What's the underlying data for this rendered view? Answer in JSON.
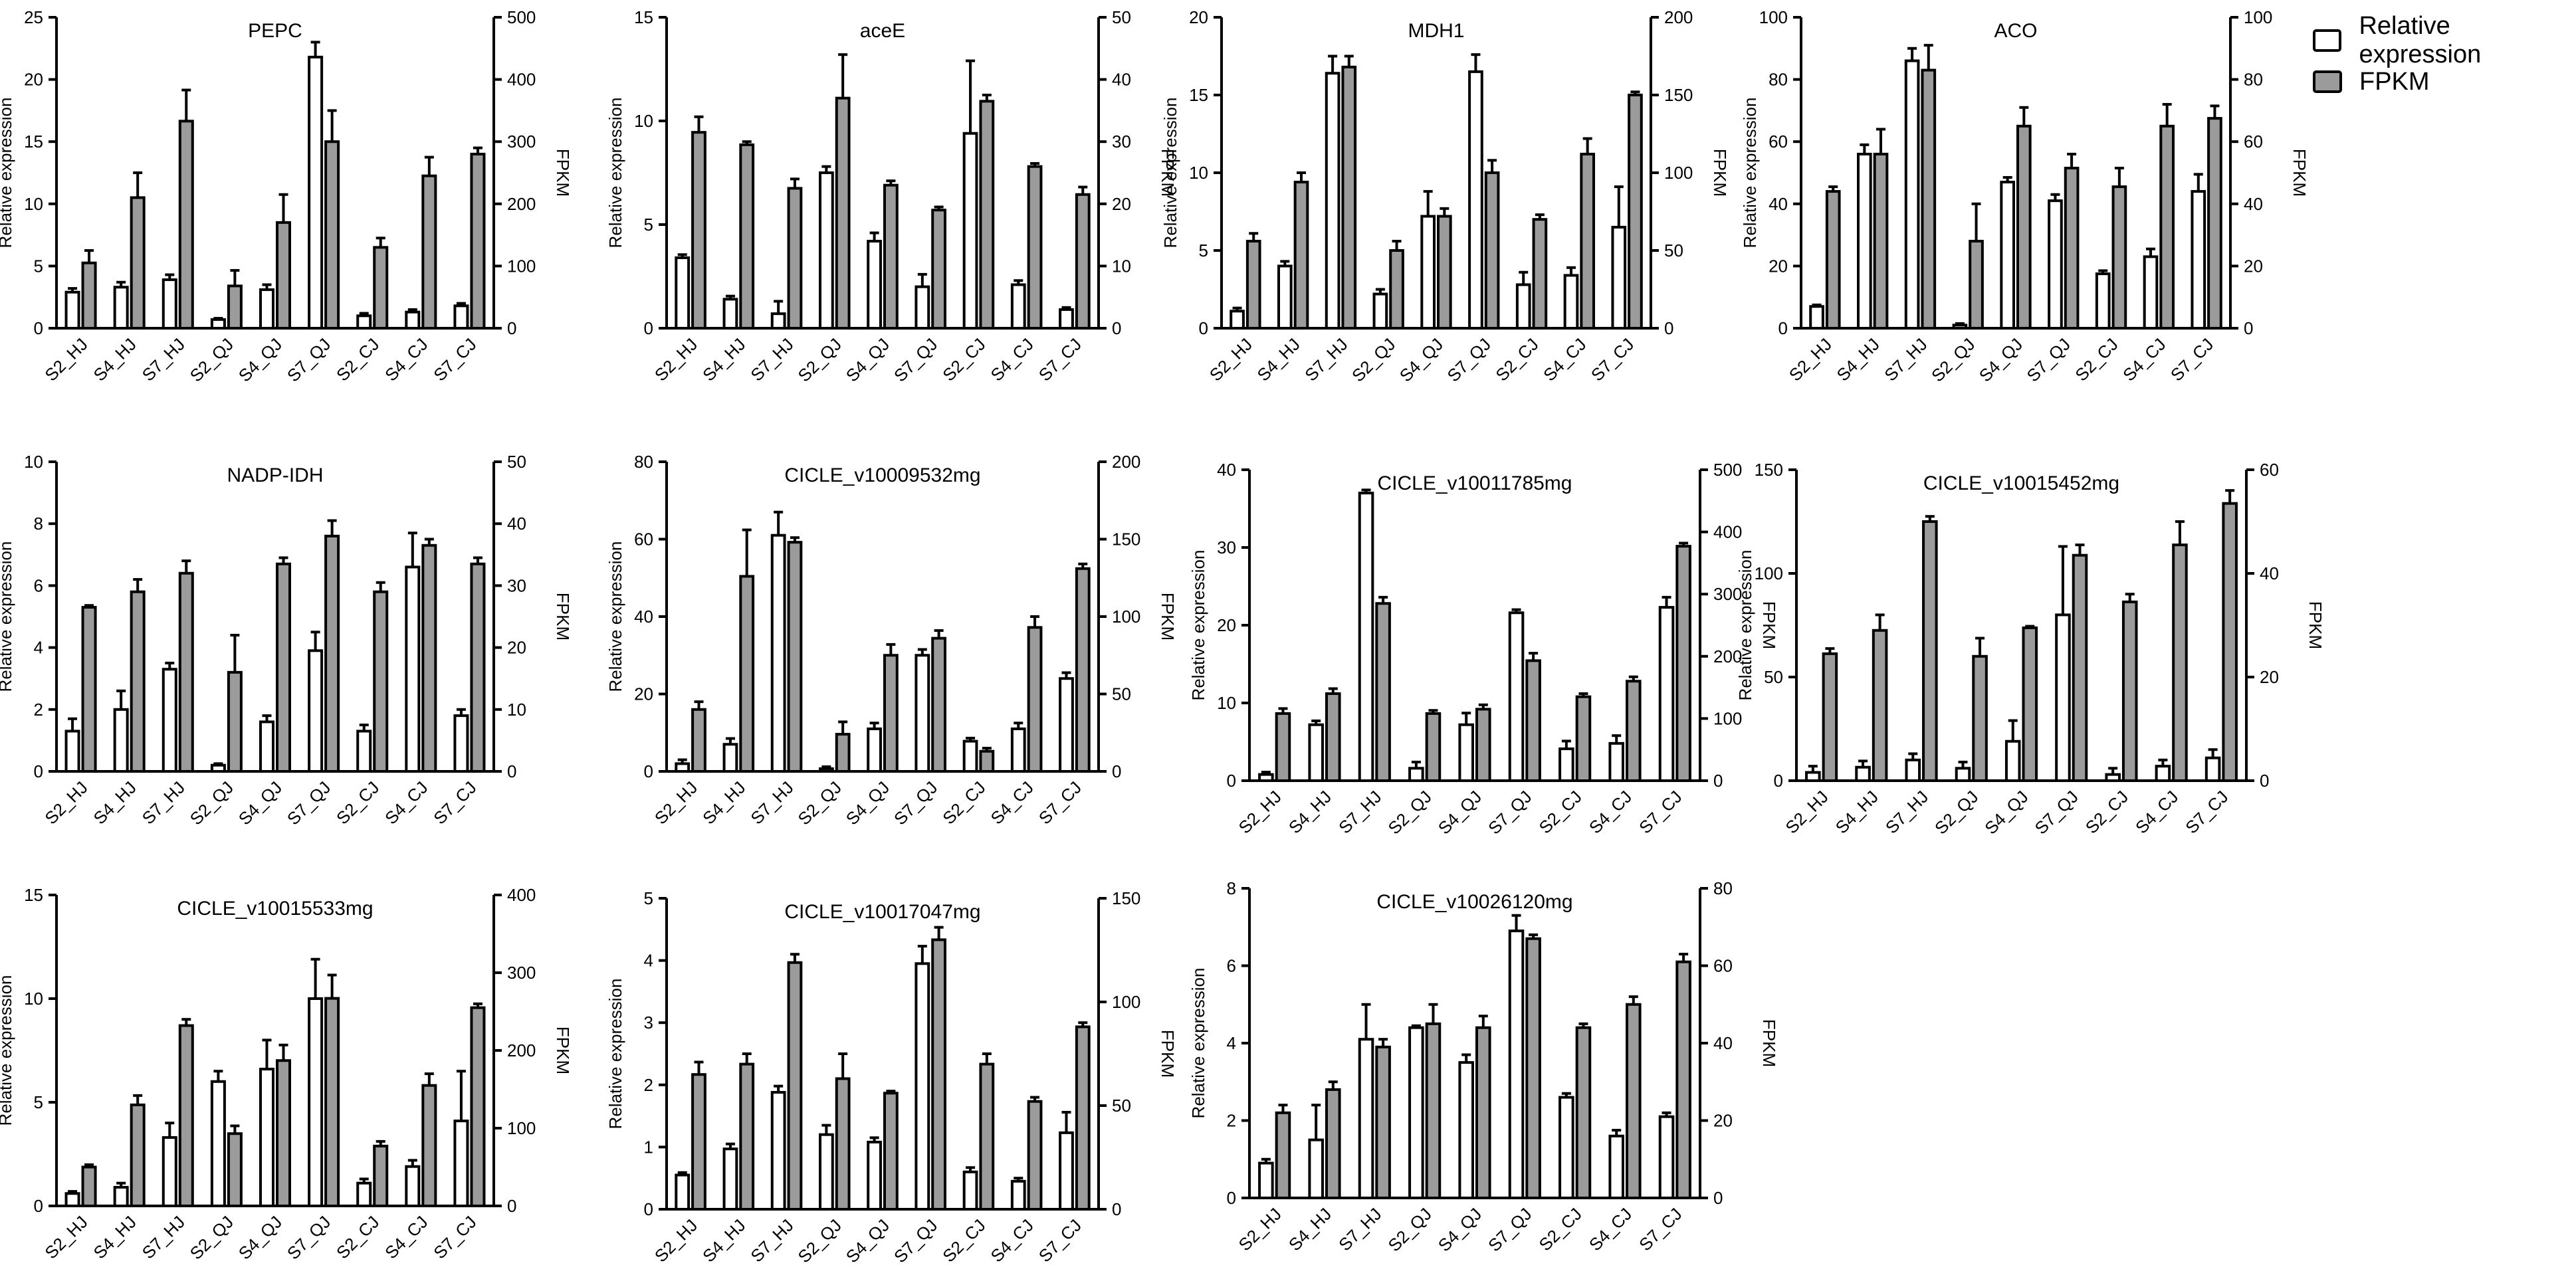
{
  "legend": {
    "relative_label": "Relative expression",
    "fpkm_label": "FPKM",
    "relative_color": "#ffffff",
    "fpkm_color": "#9b9b9b"
  },
  "chart_data": [
    {
      "type": "bar",
      "title": "PEPC",
      "ylabel": "Relative expression",
      "y2label": "FPKM",
      "categories": [
        "S2_HJ",
        "S4_HJ",
        "S7_HJ",
        "S2_QJ",
        "S4_QJ",
        "S7_QJ",
        "S2_CJ",
        "S4_CJ",
        "S7_CJ"
      ],
      "ylim": [
        0,
        25
      ],
      "yticks": [
        0,
        5,
        10,
        15,
        20,
        25
      ],
      "y2lim": [
        0,
        500
      ],
      "y2ticks": [
        0,
        100,
        200,
        300,
        400,
        500
      ],
      "series": [
        {
          "name": "Relative expression",
          "axis": "left",
          "values": [
            2.9,
            3.3,
            3.9,
            0.7,
            3.1,
            21.8,
            1.0,
            1.3,
            1.8
          ],
          "errors": [
            0.3,
            0.4,
            0.4,
            0.1,
            0.4,
            1.2,
            0.2,
            0.2,
            0.2
          ]
        },
        {
          "name": "FPKM",
          "axis": "right",
          "values": [
            105,
            210,
            333,
            68,
            170,
            300,
            130,
            245,
            280
          ],
          "errors": [
            20,
            40,
            50,
            25,
            45,
            50,
            15,
            30,
            10
          ]
        }
      ]
    },
    {
      "type": "bar",
      "title": "aceE",
      "ylabel": "Relative expression",
      "y2label": "FPKM",
      "categories": [
        "S2_HJ",
        "S4_HJ",
        "S7_HJ",
        "S2_QJ",
        "S4_QJ",
        "S7_QJ",
        "S2_CJ",
        "S4_CJ",
        "S7_CJ"
      ],
      "ylim": [
        0,
        15
      ],
      "yticks": [
        0,
        5,
        10,
        15
      ],
      "y2lim": [
        0,
        50
      ],
      "y2ticks": [
        0,
        10,
        20,
        30,
        40,
        50
      ],
      "series": [
        {
          "name": "Relative expression",
          "axis": "left",
          "values": [
            3.4,
            1.4,
            0.7,
            7.5,
            4.2,
            2.0,
            9.4,
            2.1,
            0.9
          ],
          "errors": [
            0.15,
            0.15,
            0.6,
            0.3,
            0.4,
            0.6,
            3.5,
            0.2,
            0.1
          ]
        },
        {
          "name": "FPKM",
          "axis": "right",
          "values": [
            31.5,
            29.5,
            22.5,
            37,
            23,
            19,
            36.5,
            26,
            21.5
          ],
          "errors": [
            2.5,
            0.5,
            1.5,
            7,
            0.7,
            0.5,
            1,
            0.5,
            1.2
          ]
        }
      ]
    },
    {
      "type": "bar",
      "title": "MDH1",
      "ylabel": "Relative expression",
      "y2label": "FPKM",
      "categories": [
        "S2_HJ",
        "S4_HJ",
        "S7_HJ",
        "S2_QJ",
        "S4_QJ",
        "S7_QJ",
        "S2_CJ",
        "S4_CJ",
        "S7_CJ"
      ],
      "ylim": [
        0,
        20
      ],
      "yticks": [
        0,
        5,
        10,
        15,
        20
      ],
      "y2lim": [
        0,
        200
      ],
      "y2ticks": [
        0,
        50,
        100,
        150,
        200
      ],
      "series": [
        {
          "name": "Relative expression",
          "axis": "left",
          "values": [
            1.1,
            4.0,
            16.4,
            2.2,
            7.2,
            16.5,
            2.8,
            3.4,
            6.5
          ],
          "errors": [
            0.2,
            0.3,
            1.1,
            0.3,
            1.6,
            1.1,
            0.8,
            0.5,
            2.6
          ]
        },
        {
          "name": "FPKM",
          "axis": "right",
          "values": [
            56,
            94,
            168,
            50,
            72,
            100,
            70,
            112,
            150
          ],
          "errors": [
            5,
            6,
            7,
            6,
            5,
            8,
            3,
            10,
            2
          ]
        }
      ]
    },
    {
      "type": "bar",
      "title": "ACO",
      "ylabel": "Relative expression",
      "y2label": "FPKM",
      "categories": [
        "S2_HJ",
        "S4_HJ",
        "S7_HJ",
        "S2_QJ",
        "S4_QJ",
        "S7_QJ",
        "S2_CJ",
        "S4_CJ",
        "S7_CJ"
      ],
      "ylim": [
        0,
        100
      ],
      "yticks": [
        0,
        20,
        40,
        60,
        80,
        100
      ],
      "y2lim": [
        0,
        100
      ],
      "y2ticks": [
        0,
        20,
        40,
        60,
        80,
        100
      ],
      "series": [
        {
          "name": "Relative expression",
          "axis": "left",
          "values": [
            7,
            56,
            86,
            1,
            47,
            41,
            17.5,
            23,
            44
          ],
          "errors": [
            0.5,
            3,
            4,
            0.5,
            1.5,
            2,
            1,
            2.5,
            5.5
          ]
        },
        {
          "name": "FPKM",
          "axis": "right",
          "values": [
            44,
            56,
            83,
            28,
            65,
            51.5,
            45.5,
            65,
            67.5
          ],
          "errors": [
            1.5,
            8,
            8,
            12,
            6,
            4.5,
            6,
            7,
            4
          ]
        }
      ]
    },
    {
      "type": "bar",
      "title": "NADP-IDH",
      "ylabel": "Relative expression",
      "y2label": "FPKM",
      "categories": [
        "S2_HJ",
        "S4_HJ",
        "S7_HJ",
        "S2_QJ",
        "S4_QJ",
        "S7_QJ",
        "S2_CJ",
        "S4_CJ",
        "S7_CJ"
      ],
      "ylim": [
        0,
        10
      ],
      "yticks": [
        0,
        2,
        4,
        6,
        8,
        10
      ],
      "y2lim": [
        0,
        50
      ],
      "y2ticks": [
        0,
        10,
        20,
        30,
        40,
        50
      ],
      "series": [
        {
          "name": "Relative expression",
          "axis": "left",
          "values": [
            1.3,
            2.0,
            3.3,
            0.2,
            1.6,
            3.9,
            1.3,
            6.6,
            1.8
          ],
          "errors": [
            0.4,
            0.6,
            0.2,
            0.05,
            0.2,
            0.6,
            0.2,
            1.1,
            0.2
          ]
        },
        {
          "name": "FPKM",
          "axis": "right",
          "values": [
            26.5,
            29,
            32,
            16,
            33.5,
            38,
            29,
            36.5,
            33.5
          ],
          "errors": [
            0.3,
            2,
            2,
            6,
            1,
            2.5,
            1.5,
            1,
            1
          ]
        }
      ]
    },
    {
      "type": "bar",
      "title": "CICLE_v10009532mg",
      "ylabel": "Relative expression",
      "y2label": "FPKM",
      "categories": [
        "S2_HJ",
        "S4_HJ",
        "S7_HJ",
        "S2_QJ",
        "S4_QJ",
        "S7_QJ",
        "S2_CJ",
        "S4_CJ",
        "S7_CJ"
      ],
      "ylim": [
        0,
        80
      ],
      "yticks": [
        0,
        20,
        40,
        60,
        80
      ],
      "y2lim": [
        0,
        200
      ],
      "y2ticks": [
        0,
        50,
        100,
        150,
        200
      ],
      "series": [
        {
          "name": "Relative expression",
          "axis": "left",
          "values": [
            2,
            7,
            61,
            0.7,
            11,
            30,
            7.8,
            11,
            24
          ],
          "errors": [
            1,
            1.5,
            6,
            0.5,
            1.5,
            1.5,
            0.8,
            1.5,
            1.5
          ]
        },
        {
          "name": "FPKM",
          "axis": "right",
          "values": [
            40,
            126,
            148,
            24,
            75,
            86,
            13,
            93,
            131
          ],
          "errors": [
            5,
            30,
            3,
            8,
            7,
            5,
            2,
            7,
            3
          ]
        }
      ]
    },
    {
      "type": "bar",
      "title": "CICLE_v10011785mg",
      "ylabel": "Relative expression",
      "y2label": "FPKM",
      "categories": [
        "S2_HJ",
        "S4_HJ",
        "S7_HJ",
        "S2_QJ",
        "S4_QJ",
        "S7_QJ",
        "S2_CJ",
        "S4_CJ",
        "S7_CJ"
      ],
      "ylim": [
        0,
        40
      ],
      "yticks": [
        0,
        10,
        20,
        30,
        40
      ],
      "y2lim": [
        0,
        500
      ],
      "y2ticks": [
        0,
        100,
        200,
        300,
        400,
        500
      ],
      "series": [
        {
          "name": "Relative expression",
          "axis": "left",
          "values": [
            0.8,
            7.2,
            37,
            1.6,
            7.2,
            21.6,
            4.1,
            4.8,
            22.3
          ],
          "errors": [
            0.3,
            0.5,
            0.4,
            0.8,
            1.5,
            0.4,
            1,
            1,
            1.3
          ]
        },
        {
          "name": "FPKM",
          "axis": "right",
          "values": [
            108,
            140,
            285,
            108,
            115,
            193,
            135,
            160,
            377
          ],
          "errors": [
            8,
            8,
            10,
            5,
            7,
            12,
            5,
            7,
            5
          ]
        }
      ]
    },
    {
      "type": "bar",
      "title": "CICLE_v10015452mg",
      "ylabel": "Relative expression",
      "y2label": "FPKM",
      "categories": [
        "S2_HJ",
        "S4_HJ",
        "S7_HJ",
        "S2_QJ",
        "S4_QJ",
        "S7_QJ",
        "S2_CJ",
        "S4_CJ",
        "S7_CJ"
      ],
      "ylim": [
        0,
        150
      ],
      "yticks": [
        0,
        50,
        100,
        150
      ],
      "y2lim": [
        0,
        60
      ],
      "y2ticks": [
        0,
        20,
        40,
        60
      ],
      "series": [
        {
          "name": "Relative expression",
          "axis": "left",
          "values": [
            4,
            6.5,
            10,
            6,
            19,
            80,
            3,
            7,
            11
          ],
          "errors": [
            3,
            3,
            3,
            3,
            10,
            33,
            3,
            3,
            4
          ]
        },
        {
          "name": "FPKM",
          "axis": "right",
          "values": [
            24.5,
            29,
            50,
            24,
            29.5,
            43.5,
            34.5,
            45.5,
            53.5
          ],
          "errors": [
            1,
            3,
            1,
            3.5,
            0.3,
            2,
            1.5,
            4.5,
            2.5
          ]
        }
      ]
    },
    {
      "type": "bar",
      "title": "CICLE_v10015533mg",
      "ylabel": "Relative expression",
      "y2label": "FPKM",
      "categories": [
        "S2_HJ",
        "S4_HJ",
        "S7_HJ",
        "S2_QJ",
        "S4_QJ",
        "S7_QJ",
        "S2_CJ",
        "S4_CJ",
        "S7_CJ"
      ],
      "ylim": [
        0,
        15
      ],
      "yticks": [
        0,
        5,
        10,
        15
      ],
      "y2lim": [
        0,
        400
      ],
      "y2ticks": [
        0,
        100,
        200,
        300,
        400
      ],
      "series": [
        {
          "name": "Relative expression",
          "axis": "left",
          "values": [
            0.6,
            0.9,
            3.3,
            6.0,
            6.6,
            10.0,
            1.1,
            1.9,
            4.1
          ],
          "errors": [
            0.1,
            0.2,
            0.7,
            0.5,
            1.4,
            1.9,
            0.2,
            0.3,
            2.4
          ]
        },
        {
          "name": "FPKM",
          "axis": "right",
          "values": [
            50,
            130,
            232,
            93,
            187,
            267,
            77,
            155,
            255
          ],
          "errors": [
            3,
            12,
            8,
            10,
            20,
            30,
            6,
            15,
            5
          ]
        }
      ]
    },
    {
      "type": "bar",
      "title": "CICLE_v10017047mg",
      "ylabel": "Relative expression",
      "y2label": "FPKM",
      "categories": [
        "S2_HJ",
        "S4_HJ",
        "S7_HJ",
        "S2_QJ",
        "S4_QJ",
        "S7_QJ",
        "S2_CJ",
        "S4_CJ",
        "S7_CJ"
      ],
      "ylim": [
        0,
        5
      ],
      "yticks": [
        0,
        1,
        2,
        3,
        4,
        5
      ],
      "y2lim": [
        0,
        150
      ],
      "y2ticks": [
        0,
        50,
        100,
        150
      ],
      "series": [
        {
          "name": "Relative expression",
          "axis": "left",
          "values": [
            0.55,
            0.97,
            1.88,
            1.2,
            1.08,
            3.95,
            0.6,
            0.45,
            1.23
          ],
          "errors": [
            0.04,
            0.08,
            0.1,
            0.15,
            0.07,
            0.28,
            0.07,
            0.05,
            0.33
          ]
        },
        {
          "name": "FPKM",
          "axis": "right",
          "values": [
            65,
            70,
            119,
            63,
            56,
            130,
            70,
            52,
            88
          ],
          "errors": [
            6,
            5,
            4,
            12,
            1,
            6,
            5,
            2,
            2
          ]
        }
      ]
    },
    {
      "type": "bar",
      "title": "CICLE_v10026120mg",
      "ylabel": "Relative expression",
      "y2label": "FPKM",
      "categories": [
        "S2_HJ",
        "S4_HJ",
        "S7_HJ",
        "S2_QJ",
        "S4_QJ",
        "S7_QJ",
        "S2_CJ",
        "S4_CJ",
        "S7_CJ"
      ],
      "ylim": [
        0,
        8
      ],
      "yticks": [
        0,
        2,
        4,
        6,
        8
      ],
      "y2lim": [
        0,
        80
      ],
      "y2ticks": [
        0,
        20,
        40,
        60,
        80
      ],
      "series": [
        {
          "name": "Relative expression",
          "axis": "left",
          "values": [
            0.9,
            1.5,
            4.1,
            4.4,
            3.5,
            6.9,
            2.6,
            1.6,
            2.1
          ],
          "errors": [
            0.1,
            0.9,
            0.9,
            0.05,
            0.2,
            0.4,
            0.1,
            0.15,
            0.1
          ]
        },
        {
          "name": "FPKM",
          "axis": "right",
          "values": [
            22,
            28,
            39,
            45,
            44,
            67,
            44,
            50,
            61
          ],
          "errors": [
            2,
            2,
            2,
            5,
            3,
            1,
            1,
            2,
            2
          ]
        }
      ]
    }
  ]
}
